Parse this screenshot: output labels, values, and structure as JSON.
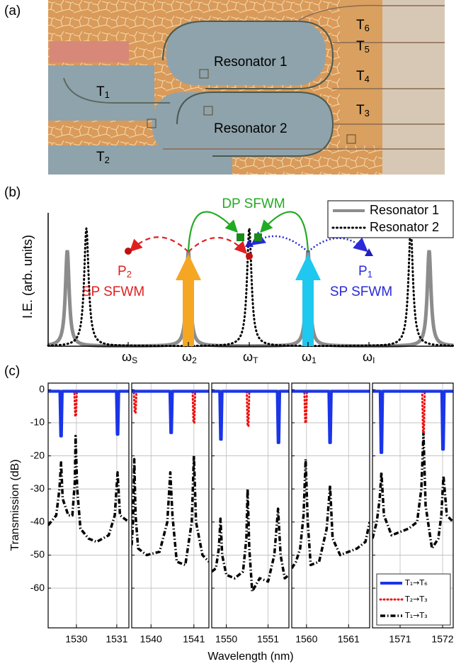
{
  "panel_a": {
    "label": "(a)",
    "resonator_1": "Resonator 1",
    "resonator_2": "Resonator 2",
    "ports": [
      {
        "base": "T",
        "sub": "1"
      },
      {
        "base": "T",
        "sub": "2"
      },
      {
        "base": "T",
        "sub": "6"
      },
      {
        "base": "T",
        "sub": "5"
      },
      {
        "base": "T",
        "sub": "4"
      },
      {
        "base": "T",
        "sub": "3"
      }
    ]
  },
  "panel_b": {
    "label": "(b)",
    "ylabel": "I.E. (arb. units)",
    "dual_pump": "DP SFWM",
    "p2": {
      "base": "P",
      "sub": "2"
    },
    "p2_process": "SP SFWM",
    "p1": {
      "base": "P",
      "sub": "1"
    },
    "p1_process": "SP SFWM",
    "legend": [
      "Resonator 1",
      "Resonator 2"
    ],
    "frequencies": [
      {
        "base": "ω",
        "sub": "S"
      },
      {
        "base": "ω",
        "sub": "2"
      },
      {
        "base": "ω",
        "sub": "T"
      },
      {
        "base": "ω",
        "sub": "1"
      },
      {
        "base": "ω",
        "sub": "I"
      }
    ]
  },
  "panel_c": {
    "label": "(c)",
    "xlabel": "Wavelength (nm)",
    "ylabel": "Transmission (dB)"
  },
  "chart_data": [
    {
      "type": "line",
      "xlim": [
        1529.3,
        1531.3
      ],
      "xticks": [
        1530,
        1531
      ],
      "ylim": [
        -72,
        2
      ],
      "yticks": [
        0,
        -10,
        -20,
        -30,
        -40,
        -50,
        -60
      ],
      "grid": true,
      "series": [
        {
          "color": "#1a35e8",
          "linestyle": "solid",
          "x": [
            1529.3,
            1529.59,
            1529.61,
            1529.63,
            1529.65,
            1530.99,
            1531.01,
            1531.03,
            1531.05,
            1531.3
          ],
          "values": [
            -0.5,
            -0.5,
            -14,
            -14,
            -0.5,
            -0.5,
            -13.5,
            -13.5,
            -0.5,
            -0.5
          ]
        },
        {
          "color": "#f01010",
          "linestyle": "dotted",
          "x": [
            1529.3,
            1529.95,
            1529.97,
            1529.99,
            1530.01,
            1531.3
          ],
          "values": [
            -0.5,
            -0.5,
            -8,
            -8,
            -0.5,
            -0.5
          ]
        },
        {
          "color": "#000000",
          "linestyle": "dashdot",
          "x": [
            1529.3,
            1529.5,
            1529.58,
            1529.62,
            1529.66,
            1529.8,
            1529.9,
            1529.96,
            1529.98,
            1530.02,
            1530.1,
            1530.3,
            1530.5,
            1530.8,
            1530.95,
            1531.02,
            1531.08,
            1531.3
          ],
          "values": [
            -41,
            -38,
            -30,
            -22,
            -33,
            -38,
            -38,
            -28,
            -14,
            -30,
            -42,
            -45,
            -46,
            -44,
            -38,
            -25,
            -38,
            -40
          ]
        }
      ]
    },
    {
      "type": "line",
      "xlim": [
        1539.55,
        1541.35
      ],
      "xticks": [
        1540,
        1541
      ],
      "ylim": [
        -72,
        2
      ],
      "yticks": [
        0,
        -10,
        -20,
        -30,
        -40,
        -50,
        -60
      ],
      "grid": true,
      "series": [
        {
          "color": "#1a35e8",
          "linestyle": "solid",
          "x": [
            1539.55,
            1540.44,
            1540.46,
            1540.48,
            1540.5,
            1541.35
          ],
          "values": [
            -0.5,
            -0.5,
            -13,
            -13,
            -0.5,
            -0.5
          ]
        },
        {
          "color": "#f01010",
          "linestyle": "dotted",
          "x": [
            1539.55,
            1539.6,
            1539.62,
            1539.64,
            1539.66,
            1540.97,
            1540.99,
            1541.01,
            1541.03,
            1541.35
          ],
          "values": [
            -0.5,
            -0.5,
            -7,
            -7,
            -0.5,
            -0.5,
            -10,
            -10,
            -0.5,
            -0.5
          ]
        },
        {
          "color": "#000000",
          "linestyle": "dashdot",
          "x": [
            1539.55,
            1539.58,
            1539.61,
            1539.64,
            1539.7,
            1539.9,
            1540.2,
            1540.38,
            1540.45,
            1540.5,
            1540.6,
            1540.8,
            1540.95,
            1541.0,
            1541.05,
            1541.2,
            1541.35
          ],
          "values": [
            -47,
            -40,
            -21,
            -38,
            -48,
            -50,
            -49,
            -40,
            -25,
            -38,
            -52,
            -53,
            -40,
            -20,
            -40,
            -50,
            -52
          ]
        }
      ]
    },
    {
      "type": "line",
      "xlim": [
        1549.65,
        1551.5
      ],
      "xticks": [
        1550,
        1551
      ],
      "ylim": [
        -72,
        2
      ],
      "yticks": [
        0,
        -10,
        -20,
        -30,
        -40,
        -50,
        -60
      ],
      "grid": true,
      "series": [
        {
          "color": "#1a35e8",
          "linestyle": "solid",
          "x": [
            1549.65,
            1549.84,
            1549.86,
            1549.88,
            1549.9,
            1551.22,
            1551.24,
            1551.26,
            1551.28,
            1551.5
          ],
          "values": [
            -0.5,
            -0.5,
            -15,
            -15,
            -0.5,
            -0.5,
            -16,
            -16,
            -0.5,
            -0.5
          ]
        },
        {
          "color": "#f01010",
          "linestyle": "dotted",
          "x": [
            1549.65,
            1550.49,
            1550.51,
            1550.53,
            1550.55,
            1551.5
          ],
          "values": [
            -0.5,
            -0.5,
            -11,
            -11,
            -0.5,
            -0.5
          ]
        },
        {
          "color": "#000000",
          "linestyle": "dashdot",
          "x": [
            1549.65,
            1549.75,
            1549.82,
            1549.86,
            1549.9,
            1550.0,
            1550.2,
            1550.4,
            1550.48,
            1550.51,
            1550.55,
            1550.62,
            1550.8,
            1551.0,
            1551.15,
            1551.24,
            1551.3,
            1551.4,
            1551.5
          ],
          "values": [
            -55,
            -54,
            -48,
            -39,
            -50,
            -56,
            -57,
            -55,
            -45,
            -30,
            -48,
            -61,
            -57,
            -58,
            -50,
            -36,
            -50,
            -57,
            -56
          ]
        }
      ]
    },
    {
      "type": "line",
      "xlim": [
        1559.65,
        1561.5
      ],
      "xticks": [
        1560,
        1561
      ],
      "ylim": [
        -72,
        2
      ],
      "yticks": [
        0,
        -10,
        -20,
        -30,
        -40,
        -50,
        -60
      ],
      "grid": true,
      "series": [
        {
          "color": "#1a35e8",
          "linestyle": "solid",
          "x": [
            1559.65,
            1560.53,
            1560.55,
            1560.57,
            1560.59,
            1561.5
          ],
          "values": [
            -0.5,
            -0.5,
            -16,
            -16,
            -0.5,
            -0.5
          ]
        },
        {
          "color": "#f01010",
          "linestyle": "dotted",
          "x": [
            1559.65,
            1559.95,
            1559.97,
            1559.99,
            1560.01,
            1561.5
          ],
          "values": [
            -0.5,
            -0.5,
            -10,
            -10,
            -0.5,
            -0.5
          ]
        },
        {
          "color": "#000000",
          "linestyle": "dashdot",
          "x": [
            1559.65,
            1559.75,
            1559.85,
            1559.93,
            1559.98,
            1560.03,
            1560.1,
            1560.3,
            1560.48,
            1560.56,
            1560.62,
            1560.8,
            1561.0,
            1561.2,
            1561.4,
            1561.5
          ],
          "values": [
            -54,
            -52,
            -48,
            -38,
            -21,
            -40,
            -53,
            -52,
            -42,
            -29,
            -45,
            -50,
            -49,
            -48,
            -46,
            -40
          ]
        }
      ]
    },
    {
      "type": "line",
      "xlim": [
        1570.35,
        1572.25
      ],
      "xticks": [
        1571,
        1572
      ],
      "ylim": [
        -72,
        2
      ],
      "yticks": [
        0,
        -10,
        -20,
        -30,
        -40,
        -50,
        -60
      ],
      "grid": true,
      "legend": "lower right",
      "series": [
        {
          "name": "T₁→T₆",
          "color": "#1a35e8",
          "linestyle": "solid",
          "x": [
            1570.35,
            1570.53,
            1570.55,
            1570.57,
            1570.59,
            1571.98,
            1572.0,
            1572.02,
            1572.04,
            1572.25
          ],
          "values": [
            -0.5,
            -0.5,
            -19,
            -19,
            -0.5,
            -0.5,
            -18,
            -18,
            -0.5,
            -0.5
          ]
        },
        {
          "name": "T₂→T₃",
          "color": "#f01010",
          "linestyle": "dotted",
          "x": [
            1570.35,
            1571.52,
            1571.54,
            1571.56,
            1571.58,
            1572.25
          ],
          "values": [
            -0.5,
            -0.5,
            -13,
            -13,
            -0.5,
            -0.5
          ]
        },
        {
          "name": "T₁→T₃",
          "color": "#000000",
          "linestyle": "dashdot",
          "x": [
            1570.35,
            1570.45,
            1570.52,
            1570.56,
            1570.62,
            1570.8,
            1571.0,
            1571.2,
            1571.4,
            1571.5,
            1571.55,
            1571.6,
            1571.75,
            1571.9,
            1571.97,
            1572.02,
            1572.1,
            1572.25
          ],
          "values": [
            -45,
            -40,
            -33,
            -25,
            -38,
            -44,
            -43,
            -42,
            -40,
            -30,
            -13,
            -35,
            -48,
            -45,
            -38,
            -26,
            -38,
            -40
          ]
        }
      ]
    }
  ]
}
